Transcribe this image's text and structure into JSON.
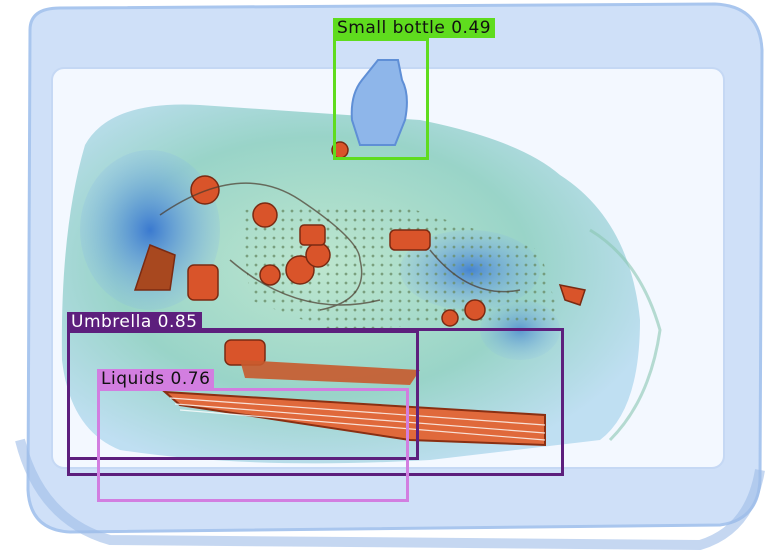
{
  "scene": {
    "description_icon": "xray-baggage-scan",
    "colors": {
      "background": "#ffffff",
      "tray": "#c9dcf7",
      "tray_inner": "#f1f6fe",
      "bag_green": "#9fd9b8",
      "bag_blue": "#4f86d8",
      "metal_orange": "#d9542a"
    }
  },
  "detections": [
    {
      "label": "Small bottle 0.49",
      "color": "#5fdc1e",
      "text_light": false
    },
    {
      "label": "Umbrella 0.85",
      "color": "#5d1f7d",
      "text_light": true
    },
    {
      "label": "Liquids 0.76",
      "color": "#d27ee0",
      "text_light": false
    }
  ]
}
